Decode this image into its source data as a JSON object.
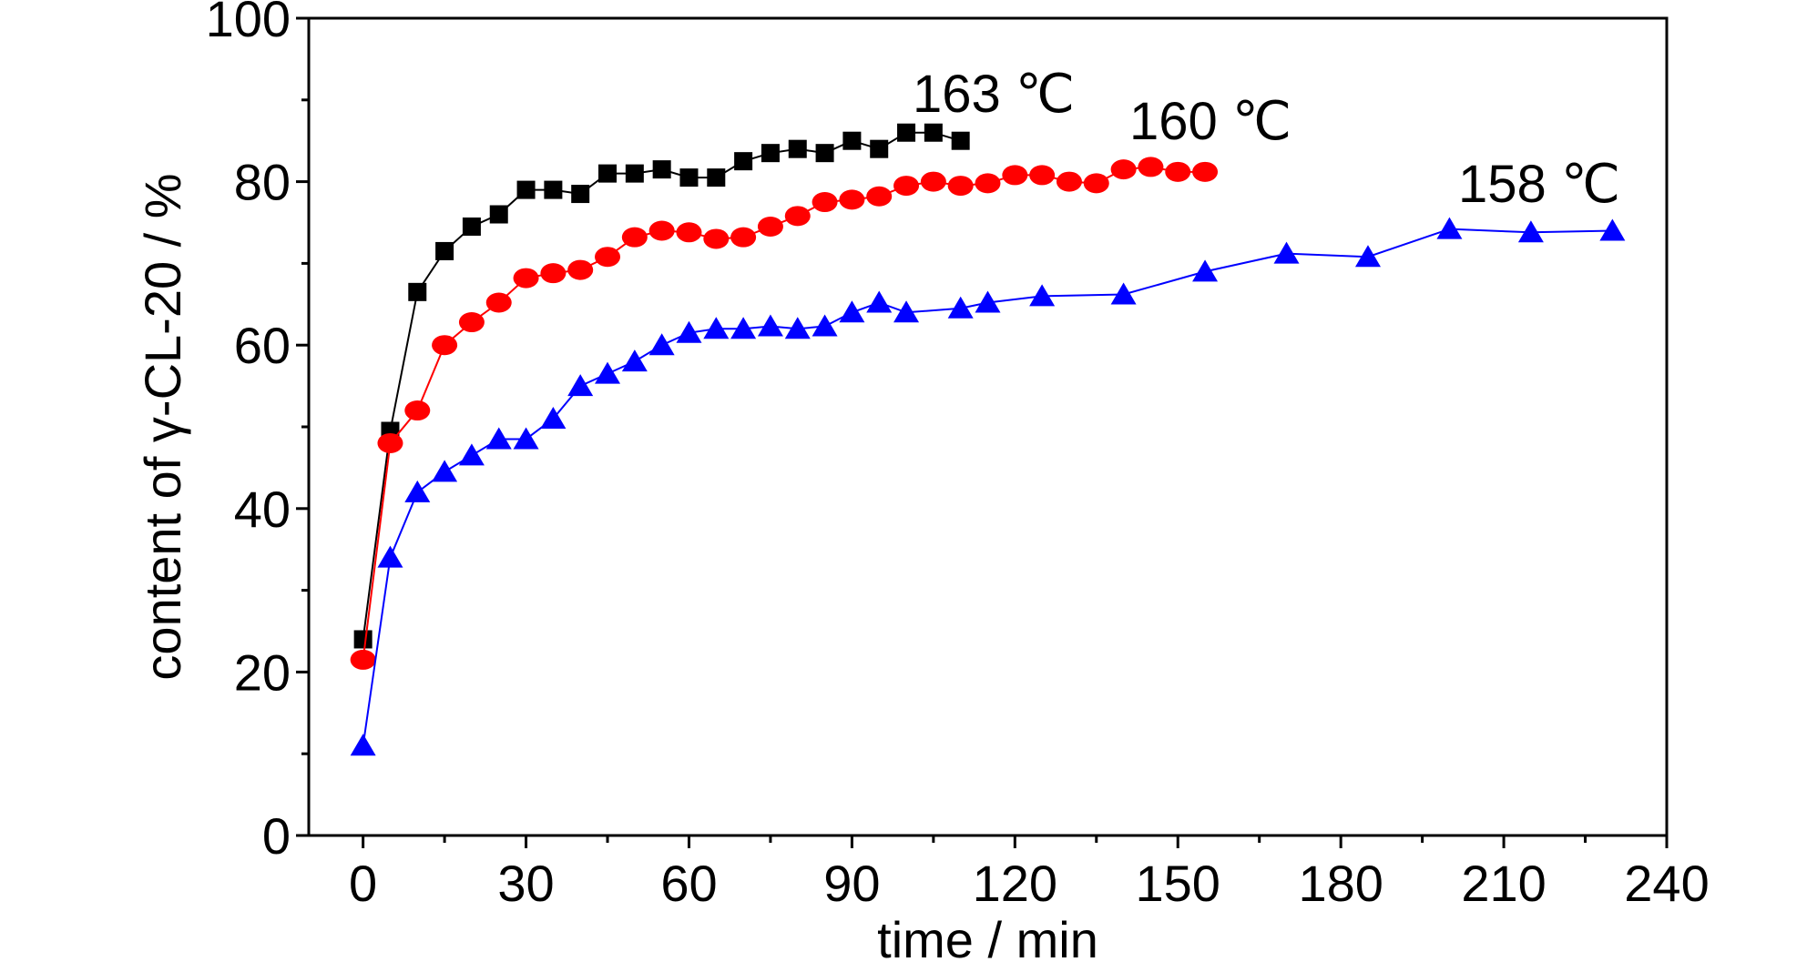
{
  "chart_data": {
    "type": "line",
    "xlabel": "time / min",
    "ylabel": "content of γ-CL-20 / %",
    "xlim": [
      -10,
      240
    ],
    "ylim": [
      0,
      100
    ],
    "xticks": [
      0,
      30,
      60,
      90,
      120,
      150,
      180,
      210,
      240
    ],
    "yticks": [
      0,
      20,
      40,
      60,
      80,
      100
    ],
    "grid": false,
    "series": [
      {
        "name": "163 ℃",
        "color": "#000000",
        "marker": "square",
        "x": [
          0,
          5,
          10,
          15,
          20,
          25,
          30,
          35,
          40,
          45,
          50,
          55,
          60,
          65,
          70,
          75,
          80,
          85,
          90,
          95,
          100,
          105,
          110
        ],
        "y": [
          24,
          49.5,
          66.5,
          71.5,
          74.5,
          76,
          79,
          79,
          78.5,
          81,
          81,
          81.5,
          80.5,
          80.5,
          82.5,
          83.5,
          84,
          83.5,
          85,
          84,
          86,
          86,
          85
        ]
      },
      {
        "name": "160 ℃",
        "color": "#ff0000",
        "marker": "circle",
        "x": [
          0,
          5,
          10,
          15,
          20,
          25,
          30,
          35,
          40,
          45,
          50,
          55,
          60,
          65,
          70,
          75,
          80,
          85,
          90,
          95,
          100,
          105,
          110,
          115,
          120,
          125,
          130,
          135,
          140,
          145,
          150,
          155
        ],
        "y": [
          21.5,
          48,
          52,
          60,
          62.8,
          65.2,
          68.2,
          68.8,
          69.2,
          70.8,
          73.2,
          74,
          73.8,
          73,
          73.2,
          74.5,
          75.8,
          77.5,
          77.8,
          78.2,
          79.5,
          80,
          79.5,
          79.8,
          80.8,
          80.8,
          80,
          79.8,
          81.5,
          81.8,
          81.2,
          81.2
        ]
      },
      {
        "name": "158 ℃",
        "color": "#0000ff",
        "marker": "triangle",
        "x": [
          0,
          5,
          10,
          15,
          20,
          25,
          30,
          35,
          40,
          45,
          50,
          55,
          60,
          65,
          70,
          75,
          80,
          85,
          90,
          95,
          100,
          110,
          115,
          125,
          140,
          155,
          170,
          185,
          200,
          215,
          230
        ],
        "y": [
          11,
          34,
          42,
          44.5,
          46.5,
          48.5,
          48.5,
          51,
          55,
          56.5,
          58,
          60,
          61.5,
          62,
          62,
          62.3,
          62,
          62.3,
          64,
          65.2,
          64,
          64.5,
          65.2,
          66,
          66.2,
          69,
          71.2,
          70.8,
          74.2,
          73.8,
          74
        ]
      }
    ],
    "annotations": [
      "163 ℃",
      "160 ℃",
      "158 ℃"
    ]
  }
}
